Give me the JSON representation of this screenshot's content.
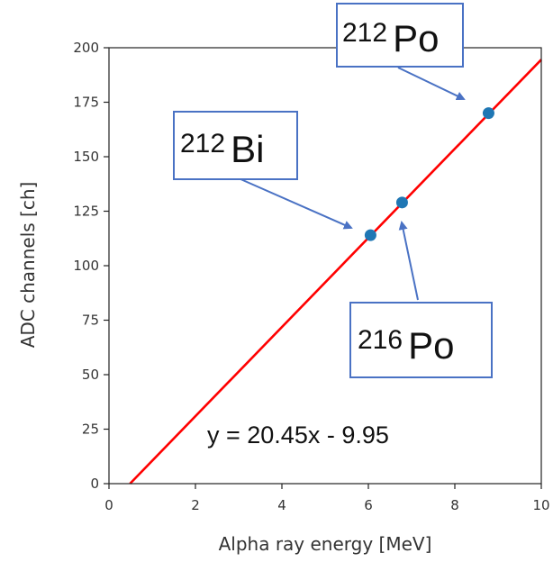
{
  "chart_data": {
    "type": "scatter",
    "xlabel": "Alpha ray energy [MeV]",
    "ylabel": "ADC channels [ch]",
    "xlim": [
      0,
      10
    ],
    "ylim": [
      0,
      200
    ],
    "xticks": [
      "0",
      "2",
      "4",
      "6",
      "8",
      "10"
    ],
    "yticks": [
      "0",
      "25",
      "50",
      "75",
      "100",
      "125",
      "150",
      "175",
      "200"
    ],
    "grid": false,
    "series": [
      {
        "points": [
          {
            "x": 6.05,
            "y": 114
          },
          {
            "x": 6.78,
            "y": 129
          },
          {
            "x": 8.78,
            "y": 170
          }
        ],
        "color": "#1f77b4"
      }
    ],
    "fit": {
      "slope": 20.45,
      "intercept": -9.95,
      "color": "#ff0000",
      "equation": "y = 20.45x - 9.95"
    },
    "annotations": [
      {
        "mass": "212",
        "symbol": "Bi",
        "target": {
          "x": 6.05,
          "y": 114
        }
      },
      {
        "mass": "216",
        "symbol": "Po",
        "target": {
          "x": 6.78,
          "y": 129
        }
      },
      {
        "mass": "212",
        "symbol": "Po",
        "target": {
          "x": 8.78,
          "y": 170
        }
      }
    ],
    "colors": {
      "annotation_border": "#4a72c4",
      "marker": "#1f77b4",
      "fit_line": "#ff0000"
    }
  }
}
